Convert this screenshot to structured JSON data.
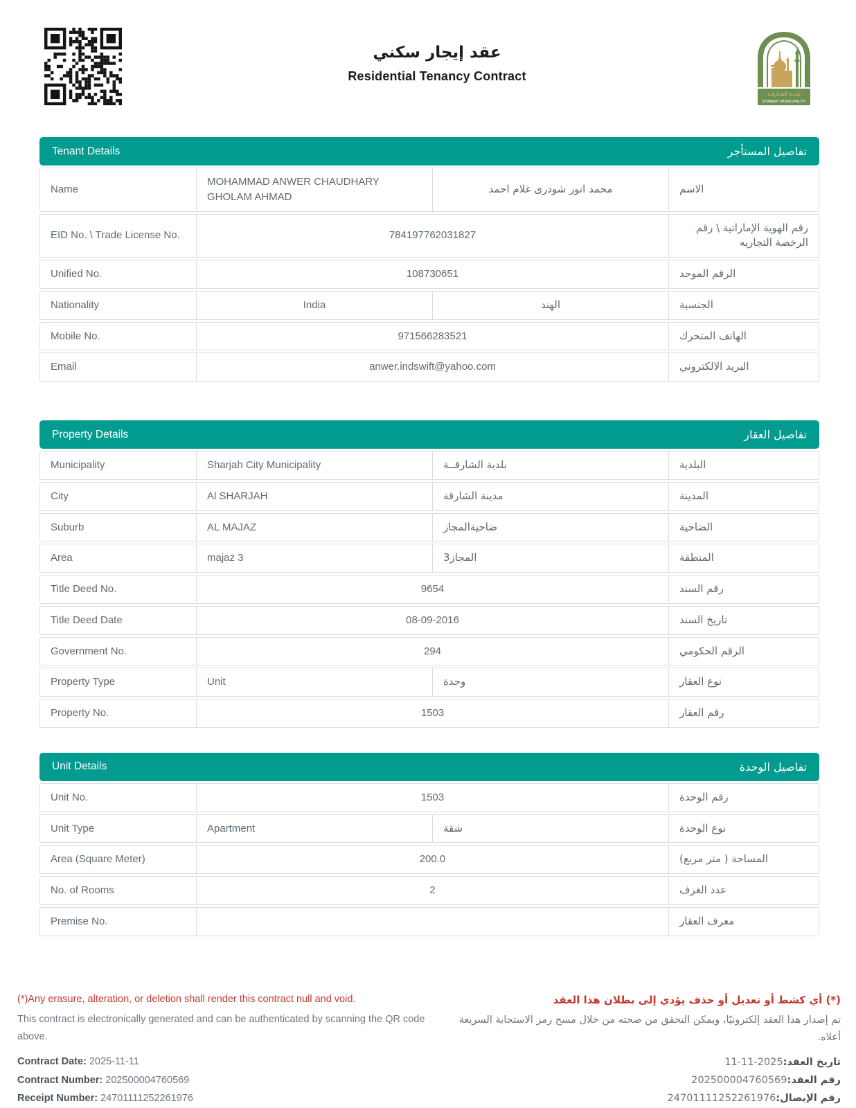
{
  "header": {
    "title_ar": "عقد إيجار سكني",
    "title_en": "Residential Tenancy Contract",
    "qr_icon": "qr-code",
    "logo": {
      "name_ar": "بلديـة الشـارقـة",
      "name_en": "SHARJAH MUNICIPALITY",
      "green": "#6E8F52",
      "gold": "#C8A55C"
    }
  },
  "colors": {
    "accent_teal": "#019B8F",
    "warning_red": "#C23A31",
    "border_gray": "#D9DDE1",
    "text_gray": "#5E6A74"
  },
  "sections": [
    {
      "id": "tenant",
      "title_en": "Tenant Details",
      "title_ar": "تفاصيل المستأجر",
      "rows": [
        {
          "label_en": "Name",
          "label_ar": "الاسم",
          "value_en": "MOHAMMAD ANWER CHAUDHARY GHOLAM AHMAD",
          "value_ar": "محمد انور شودرى غلام احمد"
        },
        {
          "label_en": "EID No. \\ Trade License No.",
          "label_ar": "رقم الهوية الإماراتية \\ رقم الرخصة التجاريه",
          "value": "784197762031827"
        },
        {
          "label_en": "Unified No.",
          "label_ar": "الرقم الموحد",
          "value": "108730651"
        },
        {
          "label_en": "Nationality",
          "label_ar": "الجنسية",
          "value_en": "India",
          "value_ar": "الهند"
        },
        {
          "label_en": "Mobile No.",
          "label_ar": "الهاتف المتحرك",
          "value": "971566283521"
        },
        {
          "label_en": "Email",
          "label_ar": "البريد الالكتروني",
          "value": "anwer.indswift@yahoo.com"
        }
      ]
    },
    {
      "id": "property",
      "title_en": "Property Details",
      "title_ar": "تفاصيل العقار",
      "rows": [
        {
          "label_en": "Municipality",
          "label_ar": "البلدية",
          "value_en": "Sharjah City Municipality",
          "value_ar": "بلدية الشارقــة"
        },
        {
          "label_en": "City",
          "label_ar": "المدينة",
          "value_en": "Al SHARJAH",
          "value_ar": "مدينة الشارقة"
        },
        {
          "label_en": "Suburb",
          "label_ar": "الضاحية",
          "value_en": "AL MAJAZ",
          "value_ar": "ضاحيةالمجاز"
        },
        {
          "label_en": "Area",
          "label_ar": "المنطقة",
          "value_en": "majaz 3",
          "value_ar": "المجاز3"
        },
        {
          "label_en": "Title Deed No.",
          "label_ar": "رقم السند",
          "value": "9654"
        },
        {
          "label_en": "Title Deed Date",
          "label_ar": "تاريخ السند",
          "value": "08-09-2016"
        },
        {
          "label_en": "Government No.",
          "label_ar": "الرقم الحكومي",
          "value": "294"
        },
        {
          "label_en": "Property Type",
          "label_ar": "نوع العقار",
          "value_en": "Unit",
          "value_ar": "وحدة"
        },
        {
          "label_en": "Property No.",
          "label_ar": "رقم العقار",
          "value": "1503"
        }
      ]
    },
    {
      "id": "unit",
      "title_en": "Unit Details",
      "title_ar": "تفاصيل الوحدة",
      "rows": [
        {
          "label_en": "Unit No.",
          "label_ar": "رقم الوحدة",
          "value": "1503"
        },
        {
          "label_en": "Unit Type",
          "label_ar": "نوع الوحدة",
          "value_en": "Apartment",
          "value_ar": "شقة"
        },
        {
          "label_en": "Area (Square Meter)",
          "label_ar": "المساحة ( متر مربع)",
          "value": "200.0"
        },
        {
          "label_en": "No. of Rooms",
          "label_ar": "عدد الغرف",
          "value": "2"
        },
        {
          "label_en": "Premise No.",
          "label_ar": "معرف العقار",
          "value": ""
        }
      ]
    }
  ],
  "footer": {
    "en": {
      "warning": "(*)Any erasure, alteration, or deletion shall render this contract null and void.",
      "note": "This contract is electronically generated and can be authenticated by scanning the QR code above.",
      "fields": [
        {
          "label": "Contract Date:",
          "value": "2025-11-11"
        },
        {
          "label": "Contract Number:",
          "value": "202500004760569"
        },
        {
          "label": "Receipt Number:",
          "value": "24701111252261976"
        }
      ]
    },
    "ar": {
      "warning": "(*) أي كشط أو تعديل أو حذف يؤدي إلى بطلان هذا العقد",
      "note": "تم إصدار هذا العقد إلكترونيًا، ويمكن التحقق من صحته من خلال مسح رمز الاستجابة السريعة أعلاه.",
      "fields": [
        {
          "label": "تاريخ العقد:",
          "value": "2025-11-11"
        },
        {
          "label": "رقم العقد:",
          "value": "202500004760569"
        },
        {
          "label": "رقم الإيصال:",
          "value": "24701111252261976"
        }
      ]
    }
  }
}
